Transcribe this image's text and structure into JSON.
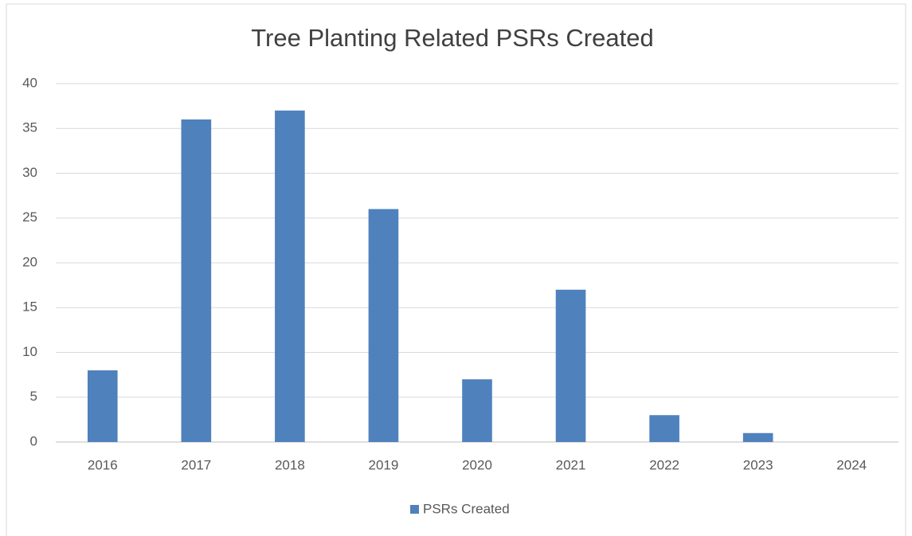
{
  "chart_data": {
    "type": "bar",
    "title": "Tree Planting Related PSRs Created",
    "categories": [
      "2016",
      "2017",
      "2018",
      "2019",
      "2020",
      "2021",
      "2022",
      "2023",
      "2024"
    ],
    "series": [
      {
        "name": "PSRs Created",
        "color": "#4f81bd",
        "values": [
          8,
          36,
          37,
          26,
          7,
          17,
          3,
          1,
          0
        ]
      }
    ],
    "ylim": [
      0,
      40
    ],
    "yticks": [
      0,
      5,
      10,
      15,
      20,
      25,
      30,
      35,
      40
    ],
    "grid": true,
    "legend": "bottom"
  }
}
